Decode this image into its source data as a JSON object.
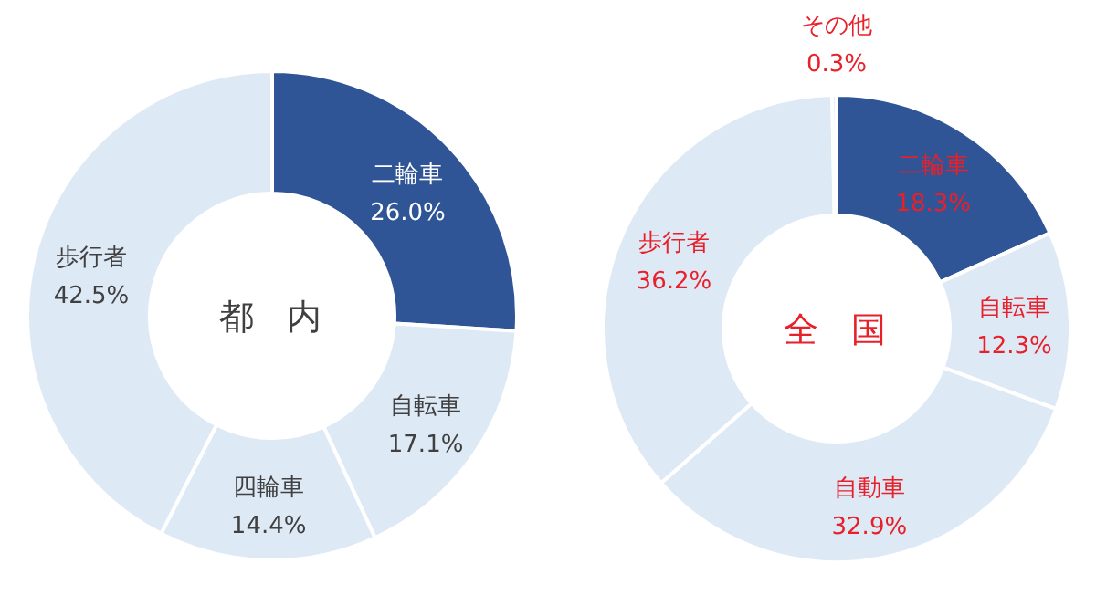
{
  "chart_data": [
    {
      "type": "donut",
      "title": "都内",
      "categories": [
        "二輪車",
        "自転車",
        "四輪車",
        "歩行者"
      ],
      "values": [
        26.0,
        17.1,
        14.4,
        42.5
      ],
      "value_labels": [
        "26.0%",
        "17.1%",
        "14.4%",
        "42.5%"
      ],
      "colors": [
        "#2f5597",
        "#dee9f6",
        "#dee9f6",
        "#dee9f6"
      ]
    },
    {
      "type": "donut",
      "title": "全国",
      "categories": [
        "二輪車",
        "自転車",
        "自動車",
        "歩行者",
        "その他"
      ],
      "values": [
        18.3,
        12.3,
        32.9,
        36.2,
        0.3
      ],
      "value_labels": [
        "18.3%",
        "12.3%",
        "32.9%",
        "36.2%",
        "0.3%"
      ],
      "colors": [
        "#2f5597",
        "#dee9f6",
        "#dee9f6",
        "#dee9f6",
        "#dee9f6"
      ]
    }
  ]
}
